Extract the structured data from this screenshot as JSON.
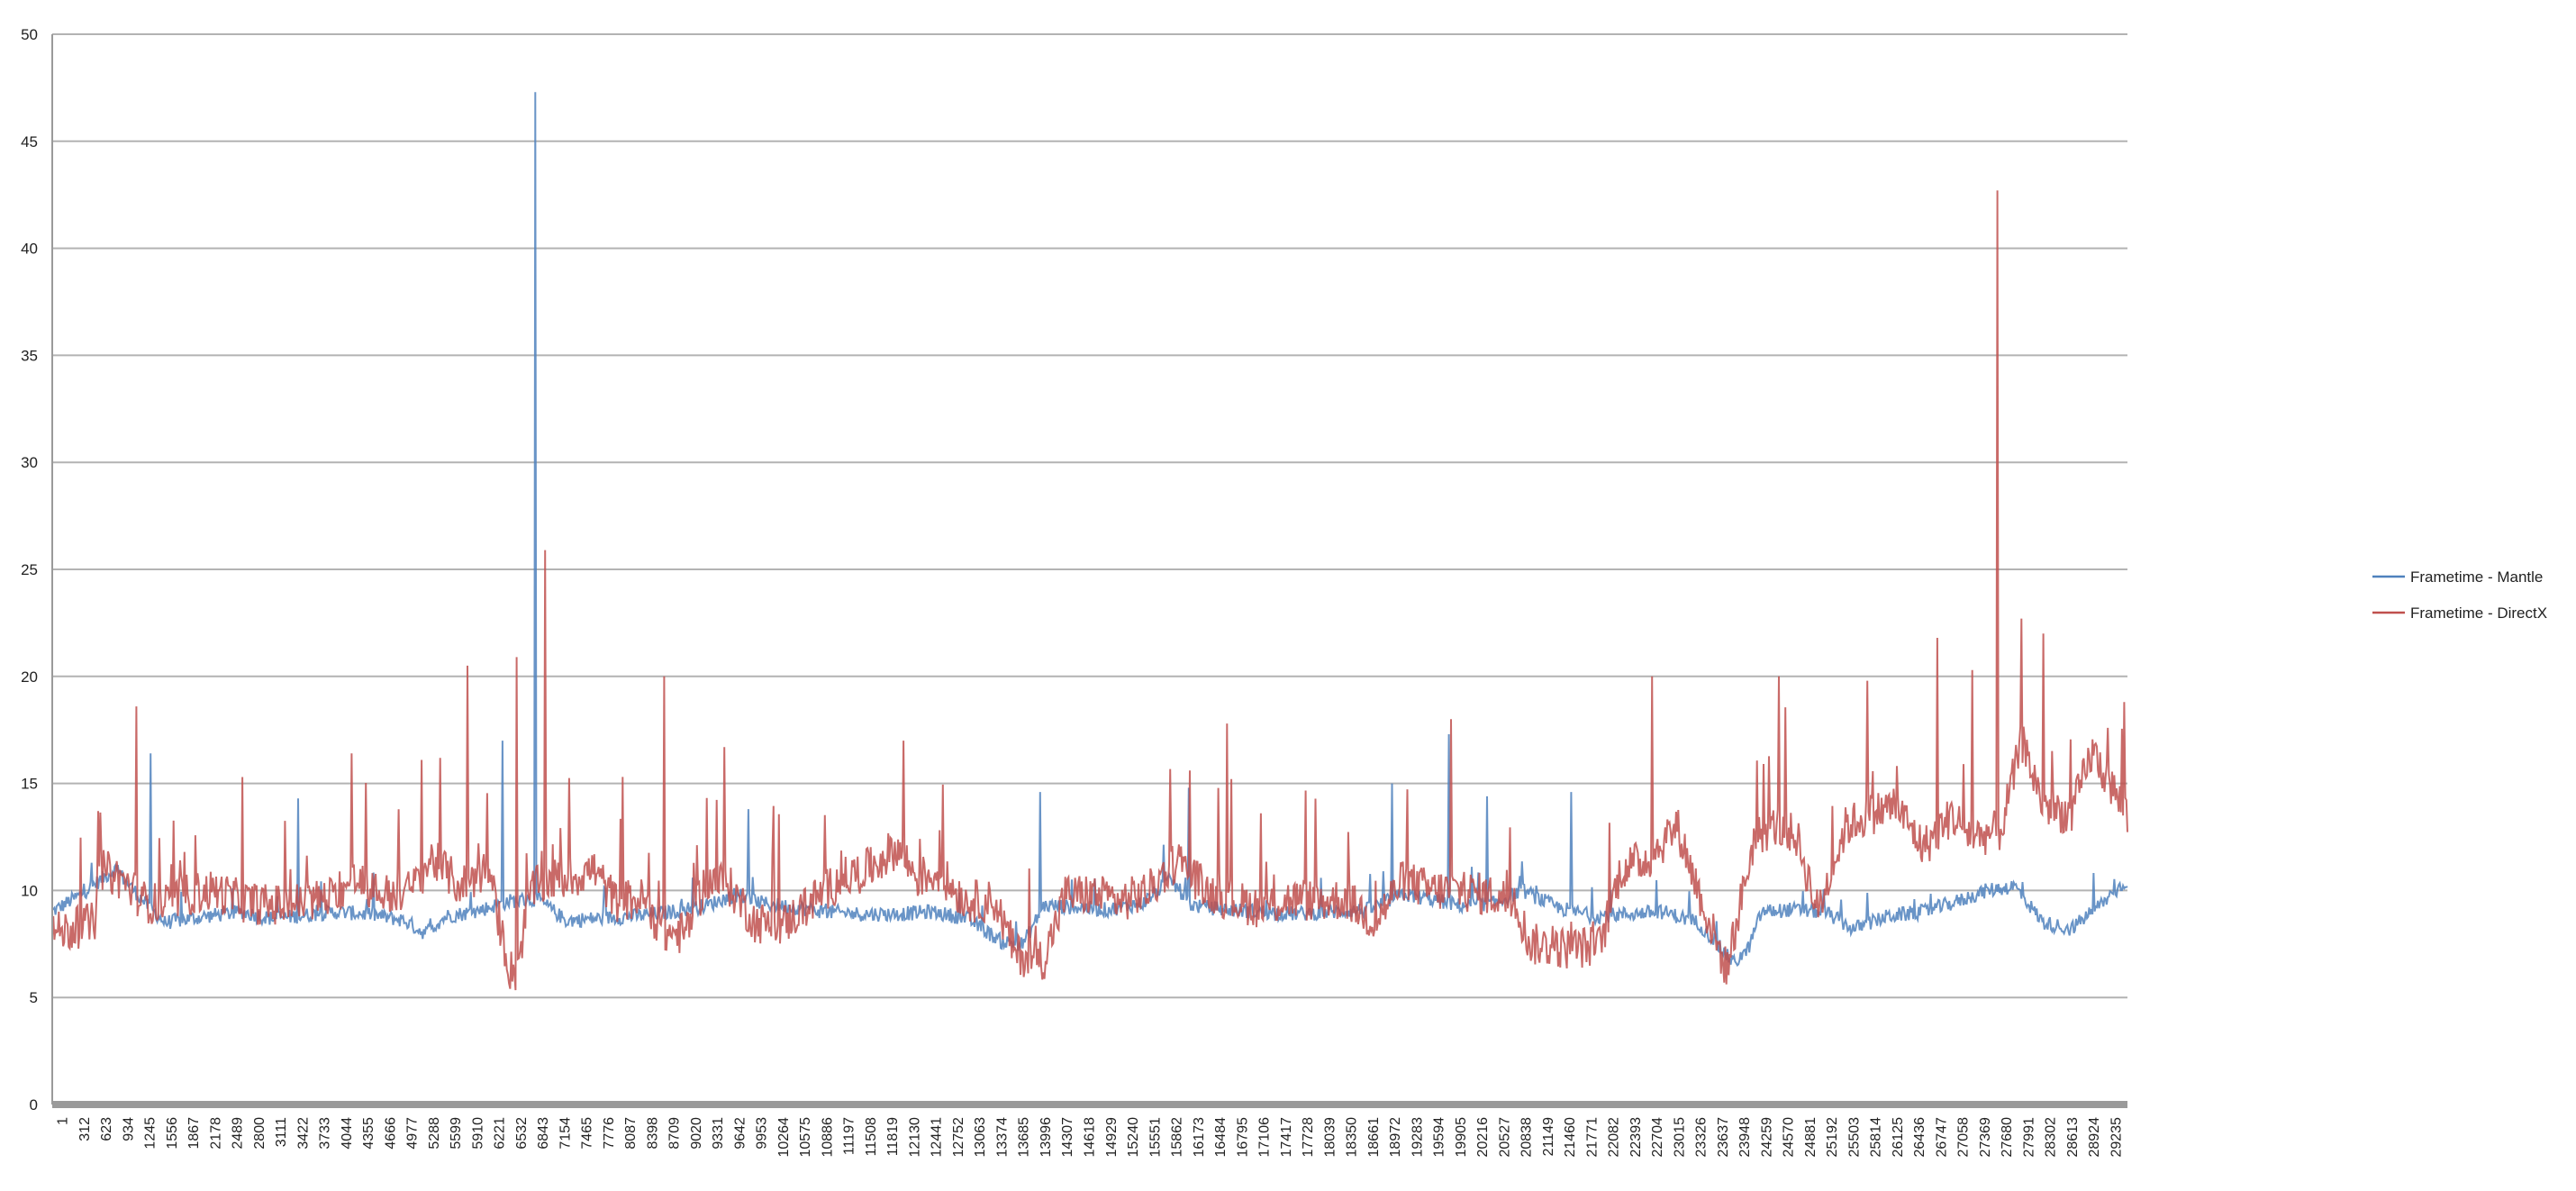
{
  "chart_data": {
    "type": "line",
    "ylim": [
      0,
      50
    ],
    "y_ticks": [
      0,
      5,
      10,
      15,
      20,
      25,
      30,
      35,
      40,
      45,
      50
    ],
    "x_range": [
      1,
      29500
    ],
    "x_tick_labels": [
      "1",
      "312",
      "623",
      "934",
      "1245",
      "1556",
      "1867",
      "2178",
      "2489",
      "2800",
      "3111",
      "3422",
      "3733",
      "4044",
      "4355",
      "4666",
      "4977",
      "5288",
      "5599",
      "5910",
      "6221",
      "6532",
      "6843",
      "7154",
      "7465",
      "7776",
      "8087",
      "8398",
      "8709",
      "9020",
      "9331",
      "9642",
      "9953",
      "10264",
      "10575",
      "10886",
      "11197",
      "11508",
      "11819",
      "12130",
      "12441",
      "12752",
      "13063",
      "13374",
      "13685",
      "13996",
      "14307",
      "14618",
      "14929",
      "15240",
      "15551",
      "15862",
      "16173",
      "16484",
      "16795",
      "17106",
      "17417",
      "17728",
      "18039",
      "18350",
      "18661",
      "18972",
      "19283",
      "19594",
      "19905",
      "20216",
      "20527",
      "20838",
      "21149",
      "21460",
      "21771",
      "22082",
      "22393",
      "22704",
      "23015",
      "23326",
      "23637",
      "23948",
      "24259",
      "24570",
      "24881",
      "25192",
      "25503",
      "25814",
      "26125",
      "26436",
      "26747",
      "27058",
      "27369",
      "27680",
      "27991",
      "28302",
      "28613",
      "28924",
      "29235"
    ],
    "grid": true,
    "legend_position": "right",
    "series": [
      {
        "name": "Frametime - Mantle",
        "color": "#4f81bd",
        "noise": 0.35,
        "x": [
          1,
          400,
          900,
          1300,
          1600,
          2200,
          2700,
          3100,
          3500,
          4000,
          4500,
          5000,
          5300,
          5600,
          6000,
          6500,
          6900,
          7300,
          7800,
          8300,
          8800,
          9300,
          9700,
          10100,
          10600,
          11000,
          11500,
          12000,
          12500,
          13000,
          13500,
          13800,
          14100,
          14600,
          15000,
          15500,
          15900,
          16200,
          16700,
          17200,
          17700,
          18200,
          18700,
          19200,
          19600,
          20000,
          20500,
          20900,
          21400,
          21900,
          22400,
          22900,
          23400,
          23900,
          24100,
          24300,
          24700,
          25200,
          25600,
          26100,
          26600,
          27100,
          27500,
          27900,
          28300,
          28700,
          29100,
          29500
        ],
        "y": [
          9.0,
          9.8,
          11.0,
          9.5,
          8.5,
          8.8,
          9.0,
          8.7,
          8.8,
          9.0,
          8.9,
          8.6,
          8.0,
          8.8,
          9.0,
          9.5,
          9.6,
          8.6,
          8.7,
          8.8,
          9.0,
          9.3,
          9.8,
          9.4,
          9.2,
          9.0,
          8.9,
          8.9,
          9.0,
          8.7,
          7.6,
          7.5,
          9.3,
          9.2,
          9.1,
          9.4,
          10.5,
          9.3,
          9.1,
          9.0,
          8.9,
          9.0,
          9.1,
          9.8,
          9.6,
          9.3,
          9.4,
          10.0,
          9.2,
          8.8,
          8.9,
          9.0,
          8.5,
          6.6,
          7.2,
          9.0,
          9.1,
          9.0,
          8.2,
          8.8,
          9.0,
          9.5,
          10.0,
          10.2,
          8.5,
          8.2,
          9.3,
          10.5
        ],
        "spikes": [
          [
            1400,
            16.4
          ],
          [
            3500,
            14.3
          ],
          [
            6400,
            17.0
          ],
          [
            6870,
            47.3
          ],
          [
            9100,
            10.6
          ],
          [
            9900,
            13.8
          ],
          [
            14050,
            14.6
          ],
          [
            16150,
            14.8
          ],
          [
            19050,
            15.0
          ],
          [
            19850,
            17.3
          ],
          [
            20400,
            14.4
          ],
          [
            21600,
            14.6
          ]
        ]
      },
      {
        "name": "Frametime - DirectX",
        "color": "#c0504d",
        "noise": 1.0,
        "x": [
          1,
          300,
          600,
          700,
          1000,
          1300,
          1600,
          1900,
          2300,
          2700,
          3100,
          3500,
          4000,
          4300,
          4700,
          5100,
          5400,
          5800,
          6200,
          6500,
          6600,
          6800,
          7100,
          7400,
          7700,
          8000,
          8400,
          8700,
          9000,
          9300,
          9600,
          10000,
          10400,
          10800,
          11200,
          11600,
          12000,
          12300,
          12600,
          13000,
          13400,
          13700,
          14100,
          14400,
          14800,
          15200,
          15600,
          16000,
          16400,
          16800,
          17200,
          17600,
          18000,
          18400,
          18800,
          19200,
          19600,
          20000,
          20400,
          20800,
          21000,
          21500,
          22000,
          22300,
          22700,
          23100,
          23500,
          23800,
          24200,
          24500,
          24800,
          25100,
          25500,
          25800,
          26200,
          26600,
          27000,
          27300,
          27700,
          28000,
          28300,
          28700,
          29000,
          29500
        ],
        "y": [
          8.0,
          8.2,
          8.5,
          11.0,
          10.5,
          9.5,
          9.3,
          9.8,
          10.0,
          9.5,
          9.3,
          9.4,
          9.7,
          10.5,
          9.8,
          10.0,
          11.5,
          10.2,
          11.0,
          6.3,
          6.2,
          10.0,
          10.5,
          10.6,
          11.0,
          9.5,
          9.6,
          8.0,
          8.0,
          10.5,
          10.3,
          8.5,
          8.4,
          9.5,
          10.5,
          11.0,
          12.0,
          10.6,
          10.8,
          9.5,
          9.5,
          7.0,
          6.8,
          9.8,
          9.8,
          9.5,
          10.0,
          11.5,
          10.0,
          9.5,
          9.2,
          9.6,
          9.5,
          9.6,
          8.5,
          10.5,
          10.0,
          10.0,
          9.8,
          9.5,
          7.5,
          7.3,
          7.4,
          11.0,
          11.5,
          13.0,
          9.0,
          6.3,
          12.5,
          13.0,
          12.5,
          9.0,
          13.0,
          13.5,
          14.0,
          12.0,
          13.5,
          12.5,
          12.8,
          17.0,
          14.0,
          13.5,
          16.5,
          13.5
        ],
        "spikes": [
          [
            1200,
            18.6
          ],
          [
            2700,
            15.3
          ],
          [
            4250,
            16.4
          ],
          [
            5250,
            16.1
          ],
          [
            5900,
            20.5
          ],
          [
            6600,
            20.9
          ],
          [
            7000,
            25.9
          ],
          [
            8700,
            20.0
          ],
          [
            9550,
            16.7
          ],
          [
            12100,
            17.0
          ],
          [
            16700,
            17.8
          ],
          [
            19880,
            18.0
          ],
          [
            22750,
            20.0
          ],
          [
            24550,
            20.0
          ],
          [
            25800,
            19.8
          ],
          [
            26800,
            21.8
          ],
          [
            27300,
            20.3
          ],
          [
            27650,
            42.7
          ],
          [
            28000,
            22.7
          ],
          [
            28300,
            22.0
          ],
          [
            29450,
            18.8
          ]
        ]
      }
    ]
  }
}
